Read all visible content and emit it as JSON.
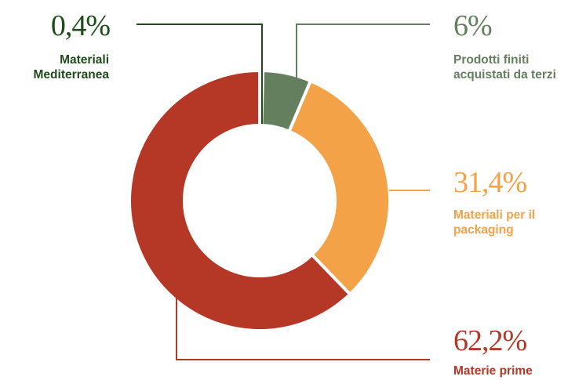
{
  "chart_data": {
    "type": "pie",
    "slices": [
      {
        "key": "mediterranea",
        "label_lines": [
          "Materiali",
          "Mediterranea"
        ],
        "value": 0.4,
        "display": "0,4%",
        "color": "#1f4d1a",
        "text_color": "#1f4d1a"
      },
      {
        "key": "prodotti",
        "label_lines": [
          "Prodotti finiti",
          "acquistati da terzi"
        ],
        "value": 6,
        "display": "6%",
        "color": "#647f5e",
        "text_color": "#647f5e"
      },
      {
        "key": "packaging",
        "label_lines": [
          "Materiali per il",
          "packaging"
        ],
        "value": 31.4,
        "display": "31,4%",
        "color": "#f3a248",
        "text_color": "#f3a248"
      },
      {
        "key": "materie",
        "label_lines": [
          "Materie prime"
        ],
        "value": 62.2,
        "display": "62,2%",
        "color": "#b53826",
        "text_color": "#b53826"
      }
    ]
  }
}
